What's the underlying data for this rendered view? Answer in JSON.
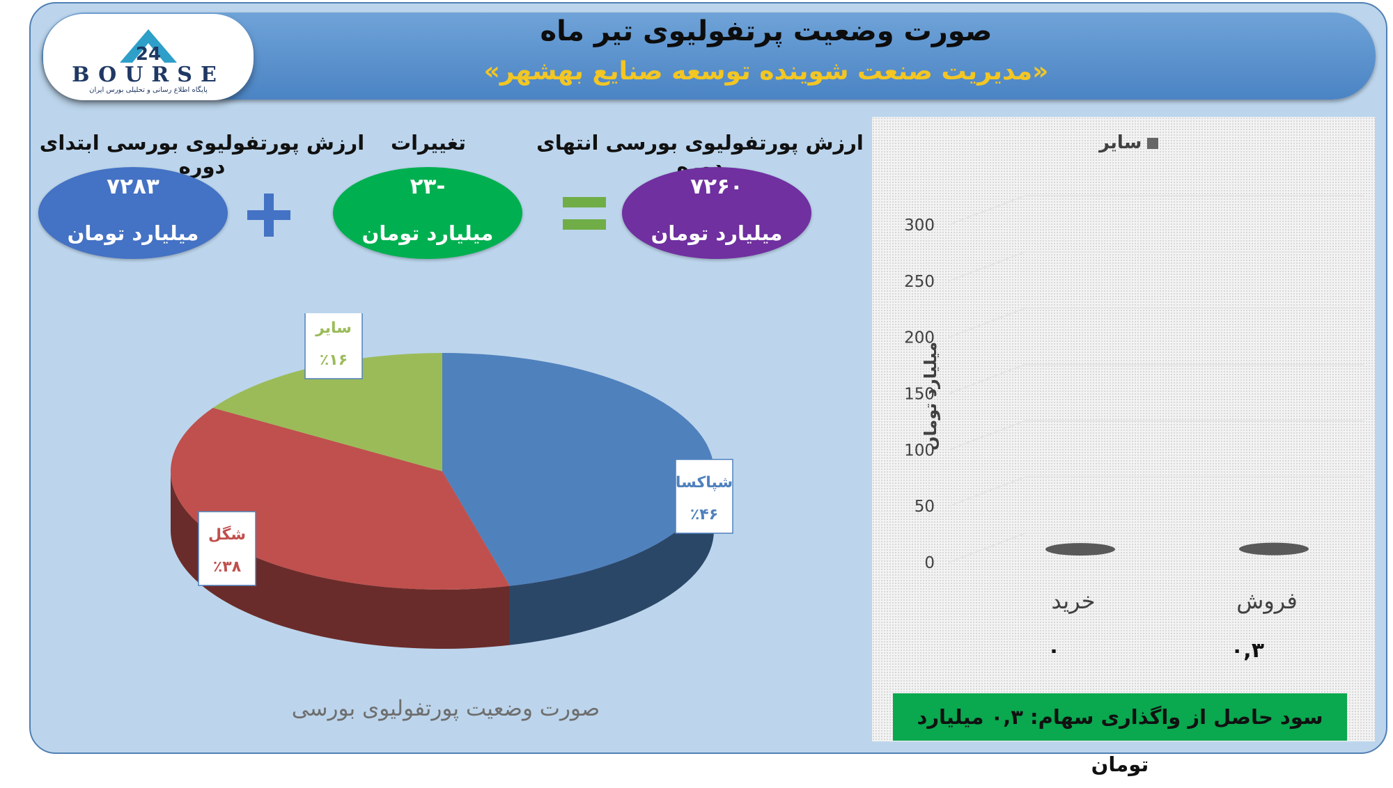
{
  "header": {
    "title": "صورت وضعیت پرتفولیوی تیر ماه",
    "subtitle": "«مدیریت صنعت شوینده توسعه صنایع بهشهر»"
  },
  "logo": {
    "text": "BOURSE",
    "tagline": "پایگاه اطلاع رسانی و تحلیلی بورس ایران"
  },
  "summary": {
    "end_label": "ارزش پورتفولیوی بورسی انتهای دوره",
    "change_label": "تغییرات",
    "start_label": "ارزش پورتفولیوی بورسی ابتدای دوره",
    "end_value": "۷۲۶۰",
    "change_value": "-۲۳",
    "start_value": "۷۲۸۳",
    "unit": "میلیارد تومان",
    "equals_symbol": "=",
    "plus_symbol": "+"
  },
  "colors": {
    "frame_bg": "#bcd5ec",
    "banner": "#5b93cf",
    "subtitle": "#f3c623",
    "oval_start": "#4472c4",
    "oval_change": "#00b050",
    "oval_end": "#7030a0",
    "plus": "#4472c4",
    "equals": "#70ad47",
    "pie_blue": "#4f81bd",
    "pie_red": "#c0504d",
    "pie_green": "#9bbb59",
    "bar": "#595959",
    "profit_bg": "#0aa84f"
  },
  "chart_data": [
    {
      "type": "pie",
      "title": "صورت وضعیت پورتفولیوی بورسی",
      "slices": [
        {
          "label": "شپاکسا",
          "value": 46,
          "display": "٪۴۶",
          "color": "#4f81bd"
        },
        {
          "label": "شگل",
          "value": 38,
          "display": "٪۳۸",
          "color": "#c0504d"
        },
        {
          "label": "سایر",
          "value": 16,
          "display": "٪۱۶",
          "color": "#9bbb59"
        }
      ]
    },
    {
      "type": "bar",
      "categories": [
        "خرید",
        "فروش"
      ],
      "series": [
        {
          "name": "سایر",
          "values": [
            0,
            0.3
          ],
          "display": [
            "۰",
            "۰,۳"
          ]
        }
      ],
      "ylabel": "میلیارد تومان",
      "ylim": [
        0,
        300
      ],
      "yticks": [
        "0",
        "50",
        "100",
        "150",
        "200",
        "250",
        "300"
      ],
      "grid": true,
      "legend": "top"
    }
  ],
  "profit": {
    "text": "سود حاصل از واگذاری سهام: ۰,۳ میلیارد تومان"
  }
}
